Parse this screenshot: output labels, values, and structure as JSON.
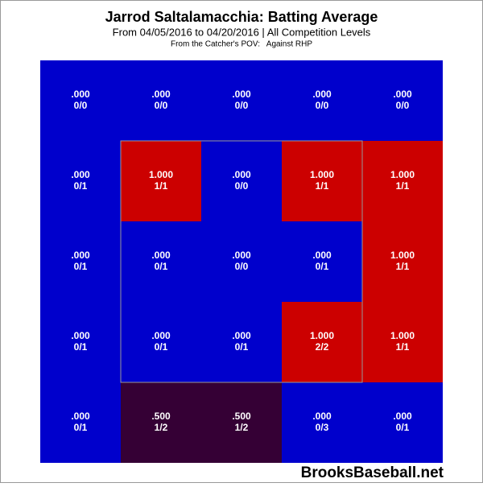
{
  "chart_data": {
    "type": "heatmap",
    "title": "Jarrod Saltalamacchia: Batting Average",
    "subtitle": "From 04/05/2016 to 04/20/2016 | All Competition Levels",
    "note": "From the Catcher's POV:   Against RHP",
    "watermark": "BrooksBaseball.net",
    "values": [
      [
        0,
        0,
        0,
        0,
        0
      ],
      [
        0,
        1,
        0,
        1,
        1
      ],
      [
        0,
        0,
        0,
        0,
        1
      ],
      [
        0,
        0,
        0,
        1,
        1
      ],
      [
        0,
        0.5,
        0.5,
        0,
        0
      ]
    ],
    "value_labels": [
      [
        ".000",
        ".000",
        ".000",
        ".000",
        ".000"
      ],
      [
        ".000",
        "1.000",
        ".000",
        "1.000",
        "1.000"
      ],
      [
        ".000",
        ".000",
        ".000",
        ".000",
        "1.000"
      ],
      [
        ".000",
        ".000",
        ".000",
        "1.000",
        "1.000"
      ],
      [
        ".000",
        ".500",
        ".500",
        ".000",
        ".000"
      ]
    ],
    "counts": [
      [
        "0/0",
        "0/0",
        "0/0",
        "0/0",
        "0/0"
      ],
      [
        "0/1",
        "1/1",
        "0/0",
        "1/1",
        "1/1"
      ],
      [
        "0/1",
        "0/1",
        "0/0",
        "0/1",
        "1/1"
      ],
      [
        "0/1",
        "0/1",
        "0/1",
        "2/2",
        "1/1"
      ],
      [
        "0/1",
        "1/2",
        "1/2",
        "0/3",
        "0/1"
      ]
    ],
    "color_low": "#0000cc",
    "color_high": "#cc0000",
    "strike_zone": true
  }
}
